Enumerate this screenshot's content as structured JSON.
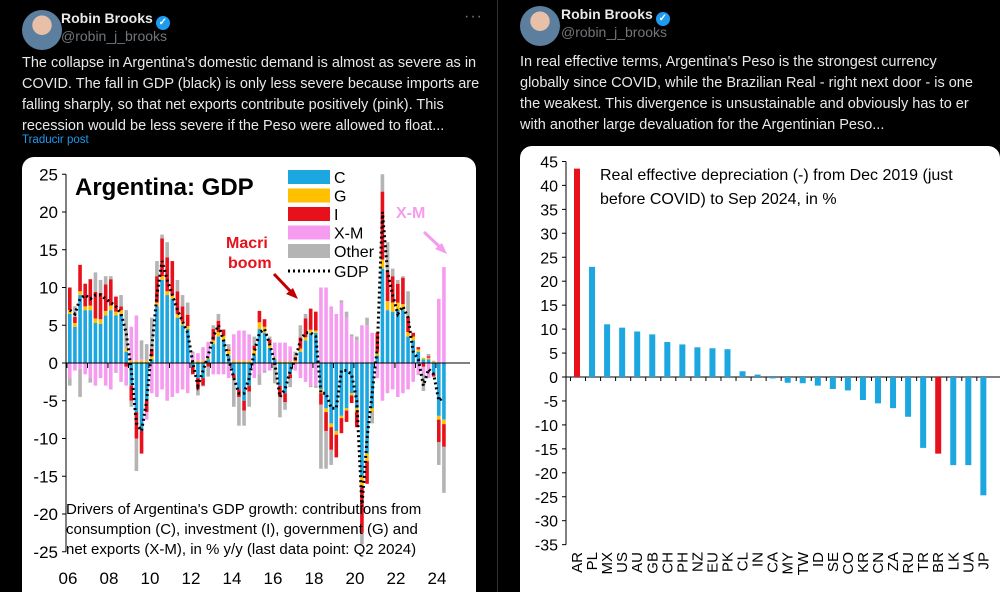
{
  "left_tweet": {
    "author": "Robin Brooks",
    "handle": "@robin_j_brooks",
    "more": "···",
    "lines": [
      "The collapse in Argentina's domestic demand is almost as severe as in",
      "COVID. The fall in GDP (black) is only less severe because imports are",
      "falling sharply, so that net exports contribute positively (pink). This",
      "recession would be less severe if the Peso were allowed to float..."
    ],
    "translate": "Traducir post"
  },
  "right_tweet": {
    "author": "Robin Brooks",
    "handle": "@robin_j_brooks",
    "lines": [
      "In real effective terms, Argentina's Peso is the strongest currency",
      "globally since COVID, while the Brazilian Real - right next door - is one",
      "the weakest. This divergence is unsustainable and obviously has to er",
      "with another large devaluation for the Argentinian Peso..."
    ]
  },
  "chart_data": [
    {
      "type": "bar",
      "stacked": true,
      "title": "Argentina: GDP",
      "ylim": [
        -25,
        25
      ],
      "yticks": [
        25,
        20,
        15,
        10,
        5,
        0,
        -5,
        -10,
        -15,
        -20,
        -25
      ],
      "xticks": [
        "06",
        "08",
        "10",
        "12",
        "14",
        "16",
        "18",
        "20",
        "22",
        "24"
      ],
      "start": "2006Q1",
      "end": "2024Q2",
      "legend": [
        "C",
        "G",
        "I",
        "X-M",
        "Other",
        "GDP"
      ],
      "colors": {
        "C": "#1ca7e0",
        "G": "#ffc000",
        "I": "#e8101a",
        "XM": "#f59cf0",
        "Other": "#b4b4b4",
        "GDP": "#000000"
      },
      "annotations": {
        "macri1": "Macri",
        "macri2": "boom",
        "xm": "X-M"
      },
      "footnote": [
        "Drivers of Argentina's GDP growth: contributions from",
        "consumption (C), investment (I), government (G) and",
        "net exports (X-M), in % y/y (last data point: Q2 2024)"
      ],
      "series": {
        "GDP": [
          7.0,
          6.5,
          8.5,
          9.0,
          8.5,
          9.0,
          9.0,
          8.5,
          8.0,
          7.5,
          6.5,
          4.0,
          -1.0,
          -8.0,
          -9.0,
          -5.0,
          2.0,
          9.0,
          13.5,
          11.0,
          9.0,
          7.0,
          5.5,
          4.0,
          0.0,
          -3.0,
          -1.0,
          1.0,
          3.5,
          5.0,
          3.0,
          0.5,
          -2.0,
          -4.0,
          -4.0,
          -2.0,
          1.5,
          4.0,
          4.5,
          2.5,
          0.0,
          -4.5,
          -3.5,
          -1.0,
          0.5,
          3.0,
          4.0,
          4.0,
          3.5,
          -4.0,
          -4.0,
          -6.0,
          -6.0,
          -1.0,
          -1.0,
          -1.5,
          -5.0,
          -19.0,
          -10.0,
          -4.0,
          2.0,
          20.0,
          12.0,
          9.0,
          6.5,
          7.5,
          6.0,
          1.5,
          0.5,
          -3.0,
          -0.8,
          -1.5,
          -5.0,
          -4.5
        ],
        "C": [
          6.5,
          4.8,
          9.0,
          7.0,
          7.0,
          5.3,
          5.2,
          6.3,
          7.0,
          6.3,
          6.5,
          1.5,
          -3,
          -6.5,
          -9,
          -5,
          0.5,
          7.5,
          11,
          9,
          8.5,
          6,
          5,
          4.5,
          -0.5,
          -2,
          -2,
          0.5,
          2.5,
          3.5,
          3,
          1,
          -1.5,
          -3.5,
          -5,
          -3,
          1,
          4.5,
          4,
          2,
          0.5,
          -3,
          -4,
          -1.5,
          0,
          1.5,
          3,
          4,
          4,
          -3.5,
          -6,
          -8,
          -9,
          -7,
          -6,
          -4,
          -6,
          -15,
          -12,
          -6,
          1,
          12.5,
          7,
          6.8,
          7,
          7,
          3.5,
          3,
          1.5,
          0.5,
          0.5,
          -1.5,
          -7,
          -7.5
        ],
        "G": [
          0.5,
          0.5,
          0.5,
          0.5,
          0.6,
          0.6,
          0.6,
          0.6,
          0.6,
          0.5,
          0.5,
          0.4,
          0.3,
          0.3,
          0.3,
          0.3,
          0.4,
          0.5,
          0.5,
          0.5,
          0.5,
          0.5,
          0.5,
          0.4,
          0.3,
          0.3,
          0.3,
          0.3,
          0.5,
          0.6,
          0.6,
          0.6,
          0.3,
          0.3,
          0.3,
          0.3,
          0.8,
          0.9,
          0.8,
          0.6,
          0.2,
          0.2,
          0.2,
          0.2,
          0.3,
          0.4,
          0.4,
          0.4,
          0.3,
          -0.5,
          -0.5,
          -0.5,
          -0.5,
          -0.3,
          -0.3,
          -0.3,
          -0.5,
          -1.5,
          -1,
          -0.5,
          0.5,
          1.2,
          1.2,
          1.2,
          1.0,
          0.8,
          0.6,
          0.5,
          0.3,
          0.2,
          0.2,
          0.2,
          -0.5,
          -0.6
        ],
        "I": [
          3,
          0.8,
          3.5,
          3,
          3.5,
          3.5,
          3.5,
          3.5,
          3.5,
          2,
          0.5,
          -0.5,
          -2,
          -3.5,
          -3,
          -1.5,
          1,
          3.5,
          5,
          4.5,
          4.5,
          3,
          2,
          1.5,
          -1,
          -1.5,
          -1,
          -0.5,
          1.5,
          1.5,
          0.8,
          0.2,
          -0.5,
          -1,
          -1.3,
          -0.8,
          0.5,
          1.5,
          1,
          0.5,
          -0.3,
          -1.5,
          -1.2,
          -0.5,
          0.5,
          1.5,
          2.5,
          2.8,
          2.5,
          -1.5,
          -2.5,
          -3,
          -3,
          -2,
          -1.5,
          -1,
          -2,
          -6,
          -3,
          0,
          2.5,
          9,
          4,
          3.5,
          2.5,
          3.5,
          2,
          0.5,
          0.3,
          -0.5,
          0.2,
          -0.3,
          -3,
          -3
        ],
        "XM": [
          -2,
          -1,
          -0.8,
          -1.5,
          -2,
          -3,
          -2,
          -3,
          -3.5,
          -1.2,
          -2.5,
          -2.5,
          4.5,
          6,
          0.2,
          -1,
          -4,
          -4.5,
          -3.5,
          -5,
          -4.5,
          -4,
          -3.5,
          -4,
          1,
          1,
          1.8,
          2,
          -1.5,
          -1.5,
          -1.5,
          -2,
          3.5,
          4,
          4,
          3.5,
          -2,
          -1.5,
          -1,
          -1,
          2,
          2.5,
          2.5,
          2,
          -1,
          -2,
          -2.5,
          -3,
          -3,
          10,
          10,
          7.5,
          6.5,
          8,
          6,
          3.5,
          3,
          5,
          5,
          4,
          -2,
          -5,
          -4,
          -3.5,
          -4.5,
          -4,
          -3.5,
          -2.5,
          -1.5,
          -1,
          -2,
          0,
          8.5,
          12.7
        ]
      }
    },
    {
      "type": "bar",
      "title": [
        "Real effective depreciation (-) from Dec 2019 (just",
        "before COVID) to Sep 2024, in %"
      ],
      "ylim": [
        -35,
        45
      ],
      "yticks": [
        45,
        40,
        35,
        30,
        25,
        20,
        15,
        10,
        5,
        0,
        -5,
        -10,
        -15,
        -20,
        -25,
        -30,
        -35
      ],
      "categories": [
        "AR",
        "PL",
        "MX",
        "US",
        "AU",
        "GB",
        "CH",
        "PH",
        "NZ",
        "EU",
        "PK",
        "CL",
        "IN",
        "CA",
        "MY",
        "TW",
        "ID",
        "SE",
        "CO",
        "KR",
        "CN",
        "ZA",
        "RU",
        "TR",
        "BR",
        "LK",
        "UA",
        "JP"
      ],
      "values": [
        43.5,
        23,
        11,
        10.3,
        9.5,
        8.9,
        7.3,
        6.8,
        6.2,
        6,
        5.8,
        1.2,
        0.5,
        -0.3,
        -1.2,
        -1.3,
        -1.8,
        -2.5,
        -2.8,
        -4.8,
        -5.5,
        -6.5,
        -8.3,
        -14.8,
        -16,
        -18.4,
        -18.4,
        -24.7
      ],
      "highlight": [
        "AR",
        "BR"
      ],
      "colors": {
        "default": "#1ca7e0",
        "highlight": "#e8101a"
      }
    }
  ]
}
